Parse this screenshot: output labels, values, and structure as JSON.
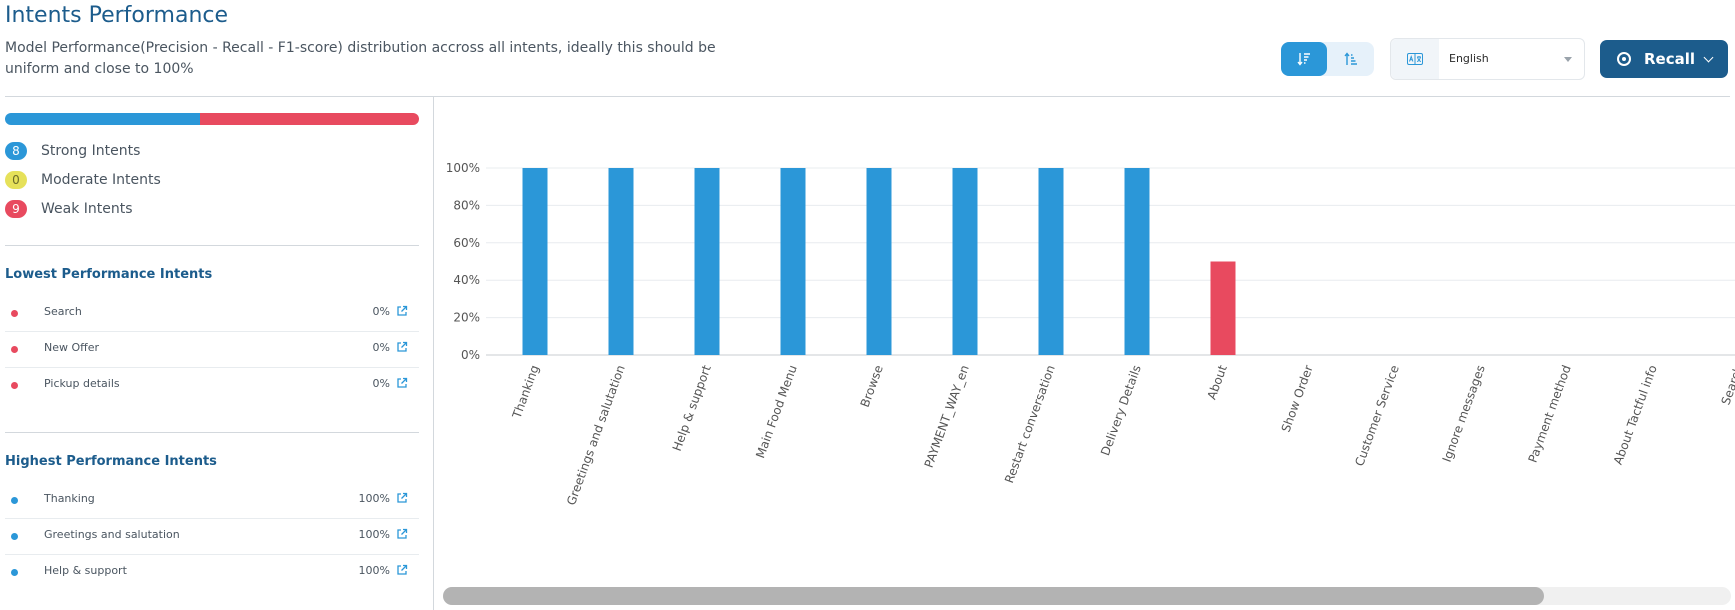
{
  "header": {
    "title": "Intents Performance",
    "description": "Model Performance(Precision - Recall - F1-score) distribution accross all intents, ideally this should be uniform and close to 100%"
  },
  "toolbar": {
    "sort_desc_icon": "sort-descending-icon",
    "sort_asc_icon": "sort-ascending-icon",
    "language_icon": "translate-icon",
    "language_selected": "English",
    "metric_button_label": "Recall",
    "colors": {
      "primary": "#1c5c8c",
      "accent": "#2b97d8",
      "weak": "#e84a5f",
      "moderate": "#e6e15a"
    }
  },
  "summary": {
    "distribution": {
      "strong_fraction": 0.4706,
      "weak_fraction": 0.5294
    },
    "legend": [
      {
        "count": "8",
        "label": "Strong Intents",
        "color": "#2b97d8",
        "text_color": "#ffffff"
      },
      {
        "count": "0",
        "label": "Moderate Intents",
        "color": "#e6e15a",
        "text_color": "#6b6b2a"
      },
      {
        "count": "9",
        "label": "Weak Intents",
        "color": "#e84a5f",
        "text_color": "#ffffff"
      }
    ]
  },
  "lowest": {
    "title": "Lowest Performance Intents",
    "items": [
      {
        "name": "Search",
        "value": "0%"
      },
      {
        "name": "New Offer",
        "value": "0%"
      },
      {
        "name": "Pickup details",
        "value": "0%"
      }
    ]
  },
  "highest": {
    "title": "Highest Performance Intents",
    "items": [
      {
        "name": "Thanking",
        "value": "100%"
      },
      {
        "name": "Greetings and salutation",
        "value": "100%"
      },
      {
        "name": "Help & support",
        "value": "100%"
      }
    ]
  },
  "scrollbar": {
    "thumb_fraction": 0.855,
    "position": 0
  },
  "chart_data": {
    "type": "bar",
    "title": "",
    "xlabel": "",
    "ylabel": "",
    "ylim": [
      0,
      100
    ],
    "yticks": [
      "0%",
      "20%",
      "40%",
      "60%",
      "80%",
      "100%"
    ],
    "grid": true,
    "categories": [
      "Thanking",
      "Greetings and salutation",
      "Help & support",
      "Main Food Menu",
      "Browse",
      "PAYMENT_WAY_en",
      "Restart conversation",
      "Delivery Details",
      "About",
      "Show Order",
      "Customer Service",
      "Ignore messages",
      "Payment method",
      "About Tactful info",
      "Search"
    ],
    "values": [
      100,
      100,
      100,
      100,
      100,
      100,
      100,
      100,
      50,
      0,
      0,
      0,
      0,
      0,
      0
    ],
    "colors": [
      "#2b97d8",
      "#2b97d8",
      "#2b97d8",
      "#2b97d8",
      "#2b97d8",
      "#2b97d8",
      "#2b97d8",
      "#2b97d8",
      "#e84a5f",
      "#e84a5f",
      "#e84a5f",
      "#e84a5f",
      "#e84a5f",
      "#e84a5f",
      "#e84a5f"
    ]
  }
}
